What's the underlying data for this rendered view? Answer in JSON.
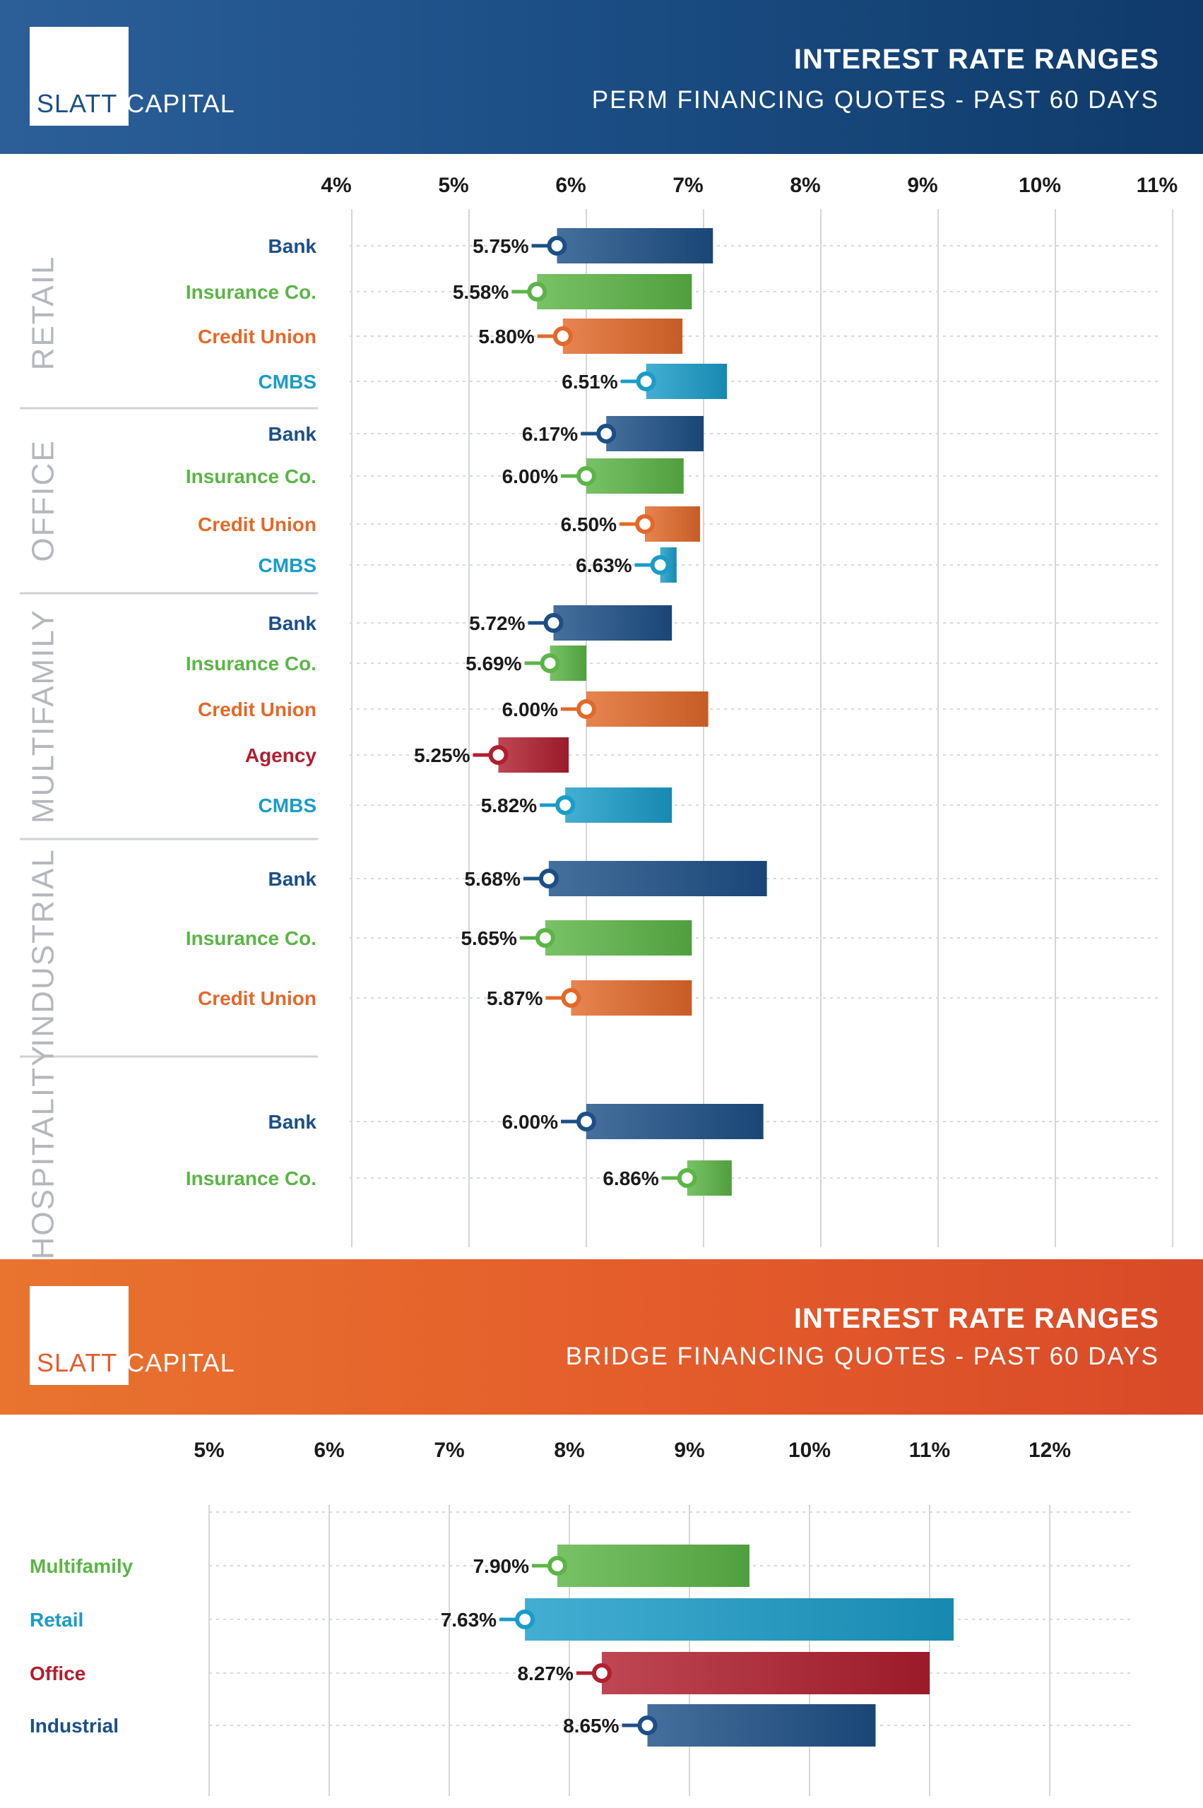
{
  "colors": {
    "bank": "#1c4f86",
    "insurance": "#5bb546",
    "credit_union": "#e2692a",
    "cmbs": "#1a9cc8",
    "agency": "#b01e2f",
    "section_label": "#b4b8bd"
  },
  "perm_header": {
    "logo_word1": "SLATT",
    "logo_word2": "CAPITAL",
    "title": "INTEREST RATE RANGES",
    "subtitle": "PERM FINANCING QUOTES - PAST 60 DAYS"
  },
  "bridge_header": {
    "logo_word1": "SLATT",
    "logo_word2": "CAPITAL",
    "title": "INTEREST RATE RANGES",
    "subtitle": "BRIDGE FINANCING QUOTES - PAST 60 DAYS"
  },
  "chart_data": [
    {
      "type": "bar",
      "chart_kind": "floating range bar",
      "axis_ticks": [
        "4%",
        "5%",
        "6%",
        "7%",
        "8%",
        "9%",
        "10%",
        "11%"
      ],
      "xlim": [
        4,
        11
      ],
      "grid": true,
      "groups": [
        {
          "name": "RETAIL",
          "bars": [
            {
              "lender": "Bank",
              "color_key": "bank",
              "low": 5.75,
              "high": 7.08,
              "label": "5.75%"
            },
            {
              "lender": "Insurance Co.",
              "color_key": "insurance",
              "low": 5.58,
              "high": 6.9,
              "label": "5.58%"
            },
            {
              "lender": "Credit Union",
              "color_key": "credit_union",
              "low": 5.8,
              "high": 6.82,
              "label": "5.80%"
            },
            {
              "lender": "CMBS",
              "color_key": "cmbs",
              "low": 6.51,
              "high": 7.2,
              "label": "6.51%"
            }
          ]
        },
        {
          "name": "OFFICE",
          "bars": [
            {
              "lender": "Bank",
              "color_key": "bank",
              "low": 6.17,
              "high": 7.0,
              "label": "6.17%"
            },
            {
              "lender": "Insurance Co.",
              "color_key": "insurance",
              "low": 6.0,
              "high": 6.83,
              "label": "6.00%"
            },
            {
              "lender": "Credit Union",
              "color_key": "credit_union",
              "low": 6.5,
              "high": 6.97,
              "label": "6.50%"
            },
            {
              "lender": "CMBS",
              "color_key": "cmbs",
              "low": 6.63,
              "high": 6.77,
              "label": "6.63%"
            }
          ]
        },
        {
          "name": "MULTIFAMILY",
          "bars": [
            {
              "lender": "Bank",
              "color_key": "bank",
              "low": 5.72,
              "high": 6.73,
              "label": "5.72%"
            },
            {
              "lender": "Insurance Co.",
              "color_key": "insurance",
              "low": 5.69,
              "high": 6.0,
              "label": "5.69%"
            },
            {
              "lender": "Credit Union",
              "color_key": "credit_union",
              "low": 6.0,
              "high": 7.04,
              "label": "6.00%"
            },
            {
              "lender": "Agency",
              "color_key": "agency",
              "low": 5.25,
              "high": 5.85,
              "label": "5.25%"
            },
            {
              "lender": "CMBS",
              "color_key": "cmbs",
              "low": 5.82,
              "high": 6.73,
              "label": "5.82%"
            }
          ]
        },
        {
          "name": "INDUSTRIAL",
          "bars": [
            {
              "lender": "Bank",
              "color_key": "bank",
              "low": 5.68,
              "high": 7.54,
              "label": "5.68%"
            },
            {
              "lender": "Insurance Co.",
              "color_key": "insurance",
              "low": 5.65,
              "high": 6.9,
              "label": "5.65%"
            },
            {
              "lender": "Credit Union",
              "color_key": "credit_union",
              "low": 5.87,
              "high": 6.9,
              "label": "5.87%"
            }
          ]
        },
        {
          "name": "HOSPITALITY",
          "bars": [
            {
              "lender": "Bank",
              "color_key": "bank",
              "low": 6.0,
              "high": 7.51,
              "label": "6.00%"
            },
            {
              "lender": "Insurance Co.",
              "color_key": "insurance",
              "low": 6.86,
              "high": 7.24,
              "label": "6.86%"
            }
          ]
        }
      ]
    },
    {
      "type": "bar",
      "chart_kind": "floating range bar",
      "axis_ticks": [
        "5%",
        "6%",
        "7%",
        "8%",
        "9%",
        "10%",
        "11%",
        "12%"
      ],
      "xlim": [
        5,
        12
      ],
      "grid": true,
      "bars": [
        {
          "category": "Multifamily",
          "color_key": "insurance",
          "low": 7.9,
          "high": 9.5,
          "label": "7.90%"
        },
        {
          "category": "Retail",
          "color_key": "cmbs",
          "low": 7.63,
          "high": 11.2,
          "label": "7.63%"
        },
        {
          "category": "Office",
          "color_key": "agency",
          "low": 8.27,
          "high": 11.0,
          "label": "8.27%"
        },
        {
          "category": "Industrial",
          "color_key": "bank",
          "low": 8.65,
          "high": 10.55,
          "label": "8.65%"
        }
      ]
    }
  ]
}
